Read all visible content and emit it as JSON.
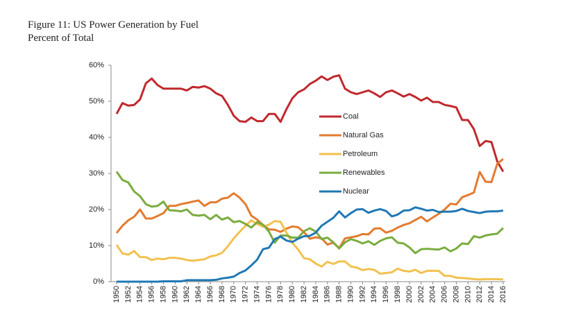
{
  "chart_data": {
    "type": "line",
    "title": "Figure 11: US Power Generation by Fuel",
    "subtitle": "Percent of Total",
    "x": [
      1950,
      1951,
      1952,
      1953,
      1954,
      1955,
      1956,
      1957,
      1958,
      1959,
      1960,
      1961,
      1962,
      1963,
      1964,
      1965,
      1966,
      1967,
      1968,
      1969,
      1970,
      1971,
      1972,
      1973,
      1974,
      1975,
      1976,
      1977,
      1978,
      1979,
      1980,
      1981,
      1982,
      1983,
      1984,
      1985,
      1986,
      1987,
      1988,
      1989,
      1990,
      1991,
      1992,
      1993,
      1994,
      1995,
      1996,
      1997,
      1998,
      1999,
      2000,
      2001,
      2002,
      2003,
      2004,
      2005,
      2006,
      2007,
      2008,
      2009,
      2010,
      2011,
      2012,
      2013,
      2014,
      2015,
      2016
    ],
    "xlim": [
      1950,
      2016
    ],
    "xticks": [
      1950,
      1952,
      1954,
      1956,
      1958,
      1960,
      1962,
      1964,
      1966,
      1968,
      1970,
      1972,
      1974,
      1976,
      1978,
      1980,
      1982,
      1984,
      1986,
      1988,
      1990,
      1992,
      1994,
      1996,
      1998,
      2000,
      2002,
      2004,
      2006,
      2008,
      2010,
      2012,
      2014,
      2016
    ],
    "ylim": [
      0,
      60
    ],
    "yticks": [
      {
        "value": 0,
        "label": "0%"
      },
      {
        "value": 10,
        "label": "10%"
      },
      {
        "value": 20,
        "label": "20%"
      },
      {
        "value": 30,
        "label": "30%"
      },
      {
        "value": 40,
        "label": "40%"
      },
      {
        "value": 50,
        "label": "50%"
      },
      {
        "value": 60,
        "label": "60%"
      }
    ],
    "grid": false,
    "legend": "center",
    "series": [
      {
        "name": "Coal",
        "color": "#c0282d",
        "values": [
          46.5,
          49.5,
          48.8,
          49,
          50.5,
          55,
          56.3,
          54.5,
          53.5,
          53.5,
          53.5,
          53.5,
          53,
          54,
          53.8,
          54.2,
          53.5,
          52.2,
          51.5,
          49,
          46,
          44.5,
          44.3,
          45.5,
          44.5,
          44.5,
          46.5,
          46.5,
          44.3,
          47.8,
          50.8,
          52.5,
          53.3,
          54.8,
          55.7,
          56.9,
          55.9,
          56.8,
          57.2,
          53.5,
          52.5,
          52,
          52.5,
          53,
          52.2,
          51.2,
          52.5,
          53,
          52.2,
          51.3,
          52,
          51.2,
          50.2,
          51,
          49.8,
          49.8,
          49,
          48.7,
          48.3,
          44.8,
          44.8,
          42.3,
          37.6,
          39,
          38.7,
          33.3,
          30.5
        ]
      },
      {
        "name": "Natural Gas",
        "color": "#e37b2e",
        "values": [
          13.5,
          15.5,
          17,
          18,
          20,
          17.5,
          17.5,
          18.2,
          19,
          21,
          21,
          21.5,
          21.8,
          22.2,
          22.5,
          21,
          22,
          22,
          23,
          23.3,
          24.5,
          23.3,
          21.5,
          18.3,
          17.2,
          15.7,
          14.5,
          14.4,
          13.8,
          14.7,
          15.3,
          15.1,
          13.7,
          11.9,
          12.3,
          12,
          10.3,
          10.8,
          9.3,
          12,
          12.3,
          12.6,
          13.2,
          13.1,
          14.7,
          14.8,
          13.6,
          14.1,
          15,
          15.7,
          16.2,
          17.1,
          18,
          16.7,
          17.8,
          18.8,
          20,
          21.6,
          21.4,
          23.4,
          24,
          24.7,
          30.4,
          27.7,
          27.6,
          32.7,
          34
        ]
      },
      {
        "name": "Petroleum",
        "color": "#f2c14e",
        "values": [
          10.2,
          7.8,
          7.5,
          8.5,
          6.8,
          6.8,
          6,
          6.4,
          6.2,
          6.6,
          6.6,
          6.4,
          6,
          5.8,
          6,
          6.2,
          7,
          7.3,
          8,
          9.8,
          12,
          13.8,
          15.5,
          17,
          16,
          15.2,
          15.8,
          16.8,
          16.6,
          13.6,
          10.8,
          8.9,
          6.5,
          6.2,
          5,
          4.2,
          5.5,
          4.9,
          5.6,
          5.6,
          4.2,
          3.9,
          3.2,
          3.5,
          3.3,
          2.2,
          2.4,
          2.6,
          3.6,
          3,
          2.8,
          3.3,
          2.4,
          3,
          3,
          3,
          1.6,
          1.6,
          1.1,
          1,
          0.9,
          0.7,
          0.6,
          0.7,
          0.7,
          0.7,
          0.6
        ]
      },
      {
        "name": "Renewables",
        "color": "#7aac3f",
        "values": [
          30.5,
          28.2,
          27.5,
          25,
          23.7,
          21.5,
          20.8,
          21,
          22.2,
          19.8,
          19.7,
          19.5,
          20,
          18.5,
          18.3,
          18.5,
          17.3,
          18.5,
          17.2,
          17.8,
          16.5,
          16.8,
          16,
          15,
          16.5,
          15.8,
          13.9,
          10.8,
          12.8,
          12.8,
          12.2,
          12.2,
          14,
          14.8,
          13.9,
          11.8,
          12.2,
          10.9,
          9.2,
          10.9,
          11.8,
          11.3,
          10.6,
          11.2,
          10.2,
          11.3,
          12,
          12.3,
          10.8,
          10.6,
          9.5,
          7.9,
          9,
          9.1,
          9,
          8.9,
          9.5,
          8.4,
          9.2,
          10.6,
          10.4,
          12.6,
          12.2,
          12.8,
          13.1,
          13.3,
          14.9
        ]
      },
      {
        "name": "Nuclear",
        "color": "#1f78b4",
        "values": [
          0,
          0,
          0,
          0,
          0,
          0,
          0,
          0,
          0.1,
          0.1,
          0.1,
          0.1,
          0.4,
          0.4,
          0.4,
          0.4,
          0.4,
          0.5,
          0.9,
          1.1,
          1.4,
          2.4,
          3.1,
          4.5,
          6.1,
          9,
          9.4,
          11.8,
          12.5,
          11.4,
          11,
          11.9,
          12.6,
          12.7,
          13.6,
          15.5,
          16.6,
          17.7,
          19.5,
          17.8,
          19,
          20,
          20.1,
          19.1,
          19.7,
          20.1,
          19.6,
          18.1,
          18.6,
          19.7,
          19.8,
          20.6,
          20.2,
          19.7,
          19.9,
          19.3,
          19.4,
          19.4,
          19.6,
          20.2,
          19.6,
          19.3,
          19,
          19.4,
          19.5,
          19.5,
          19.7
        ]
      }
    ]
  }
}
